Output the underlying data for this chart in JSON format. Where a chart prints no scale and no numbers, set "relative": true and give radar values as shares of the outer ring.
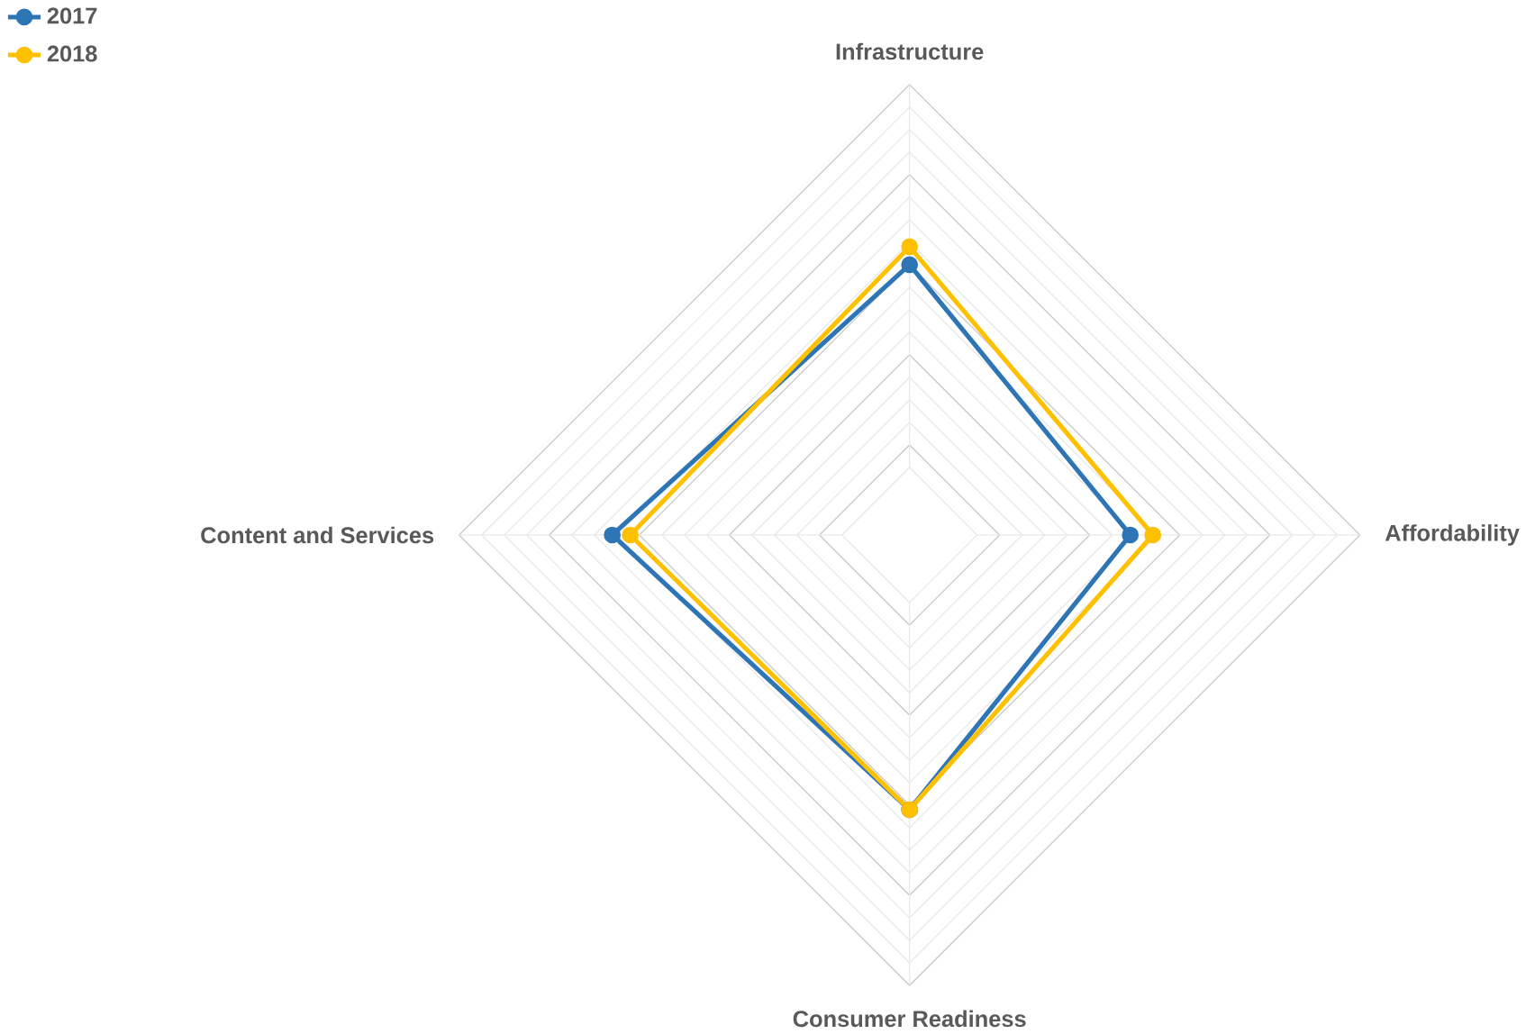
{
  "chart_data": {
    "type": "radar",
    "relative": true,
    "grid": true,
    "legend": "top left",
    "marker": "circle",
    "categories": [
      "Infrastructure",
      "Affordability",
      "Consumer Readiness",
      "Content and Services"
    ],
    "series": [
      {
        "name": "2017",
        "color": "#2e75b6",
        "values": [
          0.6,
          0.49,
          0.61,
          0.66
        ]
      },
      {
        "name": "2018",
        "color": "#ffc000",
        "values": [
          0.64,
          0.54,
          0.61,
          0.62
        ]
      }
    ]
  }
}
